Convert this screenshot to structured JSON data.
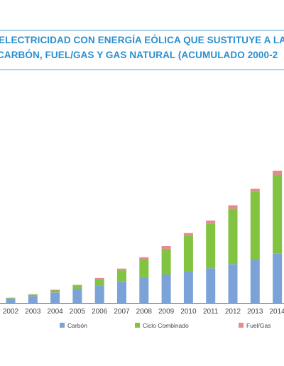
{
  "colors": {
    "carbon": "#7ca3d8",
    "ciclo": "#82c341",
    "fuel": "#e38b8d",
    "title": "#2a8fd0",
    "rule": "#4aa3d8"
  },
  "chart_data": {
    "type": "bar",
    "stacked": true,
    "title_line1": "ELECTRICIDAD CON ENERGÍA EÓLICA QUE SUSTITUYE A LA",
    "title_line2": "CARBÓN, FUEL/GAS Y GAS NATURAL (ACUMULADO 2000-2",
    "categories": [
      "2002",
      "2003",
      "2004",
      "2005",
      "2006",
      "2007",
      "2008",
      "2009",
      "2010",
      "2011",
      "2012",
      "2013",
      "2014"
    ],
    "series": [
      {
        "name": "Carbón",
        "values": [
          6,
          10,
          15,
          20,
          25,
          31,
          37,
          41,
          46,
          50,
          56,
          63,
          71
        ]
      },
      {
        "name": "Ciclo Combinado",
        "values": [
          1,
          2,
          3,
          5,
          9,
          16,
          26,
          37,
          51,
          64,
          80,
          97,
          114
        ]
      },
      {
        "name": "Fuel/Gas",
        "values": [
          0.5,
          0.5,
          1,
          1,
          2,
          2.5,
          3,
          4,
          4,
          5,
          5,
          5,
          6
        ]
      }
    ],
    "ylim": [
      0,
      205
    ],
    "legend_position": "bottom",
    "grid": false
  }
}
